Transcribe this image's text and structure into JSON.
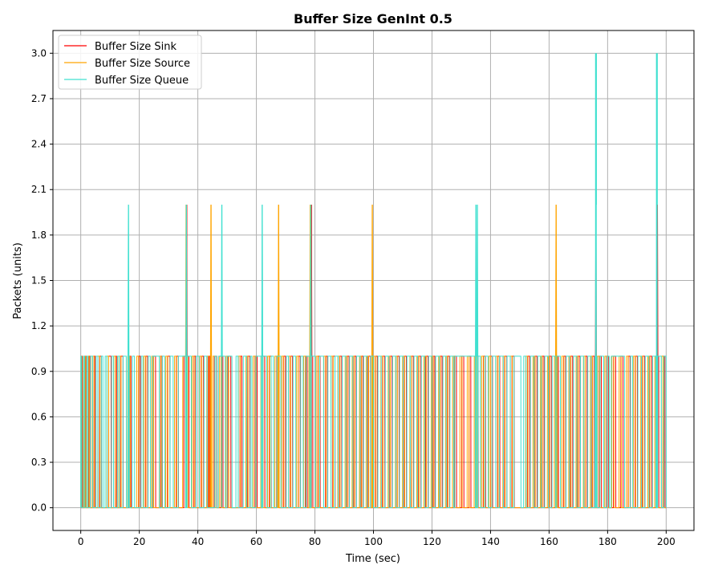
{
  "chart_data": {
    "type": "line",
    "title": "Buffer Size GenInt 0.5",
    "xlabel": "Time (sec)",
    "ylabel": "Packets (units)",
    "xlim": [
      -9.5,
      209.5
    ],
    "ylim": [
      -0.15,
      3.15
    ],
    "xticks": [
      0,
      20,
      40,
      60,
      80,
      100,
      120,
      140,
      160,
      180,
      200
    ],
    "xtick_labels": [
      "0",
      "20",
      "40",
      "60",
      "80",
      "100",
      "120",
      "140",
      "160",
      "180",
      "200"
    ],
    "yticks": [
      0.0,
      0.3,
      0.6,
      0.9,
      1.2,
      1.5,
      1.8,
      2.1,
      2.4,
      2.7,
      3.0
    ],
    "ytick_labels": [
      "0.0",
      "0.3",
      "0.6",
      "0.9",
      "1.2",
      "1.5",
      "1.8",
      "2.1",
      "2.4",
      "2.7",
      "3.0"
    ],
    "grid": true,
    "legend_position": "top-left",
    "series": [
      {
        "name": "Buffer Size Sink",
        "color": "#ff0000",
        "description": "Alternates between 0 and 1 packets across 0-200 s",
        "spikes_to_2": [
          36.2,
          78.8,
          176.0,
          197.0
        ],
        "spikes_to_3": [],
        "high_intervals": [
          [
            0.3,
            0.6
          ],
          [
            1.5,
            1.9
          ],
          [
            2.7,
            3.2
          ],
          [
            4.5,
            5.0
          ],
          [
            6.4,
            7.1
          ],
          [
            9.5,
            10.4
          ],
          [
            11.8,
            12.3
          ],
          [
            13.6,
            14.5
          ],
          [
            16.6,
            17.2
          ],
          [
            19.7,
            20.4
          ],
          [
            22.1,
            22.9
          ],
          [
            24.8,
            25.6
          ],
          [
            27.3,
            27.9
          ],
          [
            29.6,
            30.5
          ],
          [
            32.6,
            33.4
          ],
          [
            35.2,
            37.0
          ],
          [
            38.6,
            39.3
          ],
          [
            41.2,
            42.0
          ],
          [
            43.5,
            44.1
          ],
          [
            45.6,
            46.5
          ],
          [
            47.9,
            48.6
          ],
          [
            50.2,
            51.3
          ],
          [
            54.4,
            55.1
          ],
          [
            57.0,
            57.8
          ],
          [
            59.5,
            60.3
          ],
          [
            62.1,
            62.9
          ],
          [
            64.4,
            65.1
          ],
          [
            66.9,
            67.8
          ],
          [
            69.2,
            70.0
          ],
          [
            71.6,
            72.4
          ],
          [
            74.3,
            75.0
          ],
          [
            76.7,
            77.4
          ],
          [
            78.5,
            79.3
          ],
          [
            81.0,
            81.8
          ],
          [
            83.6,
            84.3
          ],
          [
            86.1,
            86.9
          ],
          [
            88.4,
            89.2
          ],
          [
            90.9,
            91.7
          ],
          [
            93.3,
            94.1
          ],
          [
            95.8,
            96.5
          ],
          [
            98.1,
            99.0
          ],
          [
            100.7,
            101.4
          ],
          [
            103.1,
            103.9
          ],
          [
            105.6,
            106.4
          ],
          [
            108.1,
            108.8
          ],
          [
            110.5,
            111.3
          ],
          [
            113.0,
            113.7
          ],
          [
            115.4,
            116.2
          ],
          [
            117.8,
            118.7
          ],
          [
            120.3,
            121.0
          ],
          [
            122.8,
            123.5
          ],
          [
            125.2,
            126.0
          ],
          [
            127.6,
            128.4
          ],
          [
            130.1,
            130.9
          ],
          [
            132.6,
            133.3
          ],
          [
            135.0,
            135.8
          ],
          [
            137.5,
            138.3
          ],
          [
            140.0,
            140.7
          ],
          [
            142.4,
            143.2
          ],
          [
            144.8,
            145.6
          ],
          [
            147.3,
            148.1
          ],
          [
            152.6,
            153.4
          ],
          [
            155.1,
            155.9
          ],
          [
            157.6,
            158.3
          ],
          [
            160.0,
            160.8
          ],
          [
            162.4,
            163.2
          ],
          [
            164.9,
            165.7
          ],
          [
            167.3,
            168.1
          ],
          [
            169.8,
            170.6
          ],
          [
            172.3,
            173.0
          ],
          [
            174.7,
            175.5
          ],
          [
            177.1,
            177.9
          ],
          [
            179.6,
            180.4
          ],
          [
            182.0,
            182.8
          ],
          [
            184.5,
            185.3
          ],
          [
            187.0,
            187.7
          ],
          [
            189.4,
            190.2
          ],
          [
            191.9,
            192.7
          ],
          [
            194.3,
            195.1
          ],
          [
            196.7,
            197.5
          ],
          [
            198.9,
            199.6
          ]
        ]
      },
      {
        "name": "Buffer Size Source",
        "color": "#ffa500",
        "description": "Alternates between 0 and 1 packets across 0-200 s",
        "spikes_to_2": [
          36.0,
          44.5,
          67.6,
          78.4,
          99.6,
          162.4
        ],
        "spikes_to_3": [],
        "high_intervals": [
          [
            0.0,
            0.4
          ],
          [
            1.2,
            1.7
          ],
          [
            2.4,
            2.9
          ],
          [
            3.9,
            4.6
          ],
          [
            5.8,
            6.6
          ],
          [
            8.9,
            9.6
          ],
          [
            11.2,
            11.9
          ],
          [
            13.0,
            13.8
          ],
          [
            16.0,
            16.9
          ],
          [
            19.1,
            19.8
          ],
          [
            21.5,
            22.3
          ],
          [
            24.2,
            24.9
          ],
          [
            26.8,
            27.5
          ],
          [
            29.0,
            29.8
          ],
          [
            32.0,
            32.8
          ],
          [
            34.8,
            36.6
          ],
          [
            38.0,
            38.8
          ],
          [
            40.6,
            41.4
          ],
          [
            43.0,
            43.8
          ],
          [
            44.3,
            44.7
          ],
          [
            45.1,
            45.9
          ],
          [
            47.3,
            48.0
          ],
          [
            49.6,
            50.6
          ],
          [
            53.8,
            54.6
          ],
          [
            56.4,
            57.2
          ],
          [
            58.9,
            59.7
          ],
          [
            61.5,
            62.3
          ],
          [
            63.8,
            64.6
          ],
          [
            66.3,
            67.2
          ],
          [
            67.4,
            67.8
          ],
          [
            68.6,
            69.4
          ],
          [
            71.0,
            71.8
          ],
          [
            73.7,
            74.4
          ],
          [
            76.1,
            76.9
          ],
          [
            77.9,
            78.7
          ],
          [
            80.4,
            81.2
          ],
          [
            83.0,
            83.8
          ],
          [
            85.5,
            86.3
          ],
          [
            87.8,
            88.6
          ],
          [
            90.3,
            91.1
          ],
          [
            92.7,
            93.5
          ],
          [
            95.2,
            96.0
          ],
          [
            97.5,
            98.4
          ],
          [
            99.4,
            99.8
          ],
          [
            100.1,
            100.9
          ],
          [
            102.5,
            103.3
          ],
          [
            105.0,
            105.8
          ],
          [
            107.5,
            108.2
          ],
          [
            109.9,
            110.7
          ],
          [
            112.4,
            113.1
          ],
          [
            114.8,
            115.6
          ],
          [
            117.2,
            118.1
          ],
          [
            119.7,
            120.5
          ],
          [
            122.2,
            122.9
          ],
          [
            124.6,
            125.4
          ],
          [
            127.0,
            127.8
          ],
          [
            129.5,
            130.3
          ],
          [
            132.0,
            132.7
          ],
          [
            134.4,
            135.2
          ],
          [
            136.9,
            137.7
          ],
          [
            139.4,
            140.1
          ],
          [
            141.8,
            142.6
          ],
          [
            144.2,
            145.0
          ],
          [
            146.7,
            147.5
          ],
          [
            152.0,
            152.8
          ],
          [
            154.5,
            155.3
          ],
          [
            157.0,
            157.7
          ],
          [
            159.4,
            160.2
          ],
          [
            161.8,
            162.9
          ],
          [
            164.3,
            165.1
          ],
          [
            166.7,
            167.5
          ],
          [
            169.2,
            170.0
          ],
          [
            171.7,
            172.4
          ],
          [
            174.1,
            174.9
          ],
          [
            176.5,
            177.3
          ],
          [
            179.0,
            179.8
          ],
          [
            181.4,
            182.2
          ],
          [
            183.9,
            184.7
          ],
          [
            186.4,
            187.1
          ],
          [
            188.8,
            189.6
          ],
          [
            191.3,
            192.1
          ],
          [
            193.7,
            194.5
          ],
          [
            196.1,
            196.9
          ],
          [
            198.3,
            199.0
          ]
        ]
      },
      {
        "name": "Buffer Size Queue",
        "color": "#40e0d0",
        "description": "Alternates between 0 and 1 packets; dense blocks at 0 packets to 1 packet",
        "spikes_to_2": [
          16.3,
          36.1,
          48.2,
          62.0,
          78.6,
          135.0,
          135.5
        ],
        "spikes_to_3": [
          176.0,
          196.8
        ],
        "high_intervals": [
          [
            0.0,
            0.3
          ],
          [
            0.9,
            1.4
          ],
          [
            2.0,
            2.5
          ],
          [
            3.3,
            4.1
          ],
          [
            5.2,
            5.9
          ],
          [
            7.0,
            7.6
          ],
          [
            8.3,
            9.0
          ],
          [
            10.5,
            11.2
          ],
          [
            12.5,
            13.2
          ],
          [
            14.4,
            15.6
          ],
          [
            16.1,
            16.6
          ],
          [
            17.6,
            18.4
          ],
          [
            20.6,
            21.3
          ],
          [
            23.0,
            23.8
          ],
          [
            24.5,
            26.9
          ],
          [
            27.8,
            28.7
          ],
          [
            30.5,
            31.6
          ],
          [
            33.3,
            35.8
          ],
          [
            36.3,
            37.8
          ],
          [
            39.4,
            40.5
          ],
          [
            42.1,
            43.2
          ],
          [
            45.8,
            46.4
          ],
          [
            47.0,
            49.4
          ],
          [
            50.0,
            51.7
          ],
          [
            53.0,
            53.8
          ],
          [
            55.5,
            56.7
          ],
          [
            57.9,
            58.5
          ],
          [
            59.8,
            61.7
          ],
          [
            62.2,
            63.6
          ],
          [
            65.0,
            65.9
          ],
          [
            67.0,
            68.4
          ],
          [
            70.2,
            71.0
          ],
          [
            72.5,
            73.5
          ],
          [
            75.1,
            76.0
          ],
          [
            77.0,
            78.2
          ],
          [
            78.7,
            80.2
          ],
          [
            81.6,
            83.0
          ],
          [
            84.4,
            85.5
          ],
          [
            86.8,
            88.0
          ],
          [
            89.3,
            90.6
          ],
          [
            91.8,
            93.0
          ],
          [
            94.2,
            95.5
          ],
          [
            96.6,
            97.9
          ],
          [
            99.0,
            100.0
          ],
          [
            101.5,
            102.7
          ],
          [
            104.0,
            105.3
          ],
          [
            106.5,
            107.7
          ],
          [
            108.9,
            110.2
          ],
          [
            111.4,
            112.6
          ],
          [
            113.8,
            115.1
          ],
          [
            116.3,
            117.6
          ],
          [
            118.8,
            120.0
          ],
          [
            121.2,
            122.5
          ],
          [
            123.7,
            124.9
          ],
          [
            126.1,
            127.4
          ],
          [
            127.8,
            134.8
          ],
          [
            135.7,
            136.6
          ],
          [
            138.1,
            139.2
          ],
          [
            140.5,
            141.8
          ],
          [
            143.0,
            144.4
          ],
          [
            145.6,
            146.8
          ],
          [
            148.0,
            150.4
          ],
          [
            151.3,
            152.2
          ],
          [
            153.6,
            154.9
          ],
          [
            156.1,
            157.3
          ],
          [
            158.5,
            159.8
          ],
          [
            161.0,
            162.2
          ],
          [
            162.6,
            163.9
          ],
          [
            165.8,
            167.0
          ],
          [
            168.3,
            169.5
          ],
          [
            170.7,
            171.9
          ],
          [
            173.2,
            174.4
          ],
          [
            175.6,
            176.4
          ],
          [
            177.4,
            178.7
          ],
          [
            179.8,
            180.6
          ],
          [
            181.2,
            185.8
          ],
          [
            187.8,
            188.6
          ],
          [
            190.3,
            191.6
          ],
          [
            192.8,
            194.1
          ],
          [
            195.3,
            196.5
          ],
          [
            197.1,
            198.4
          ],
          [
            199.2,
            200.0
          ]
        ]
      }
    ]
  }
}
